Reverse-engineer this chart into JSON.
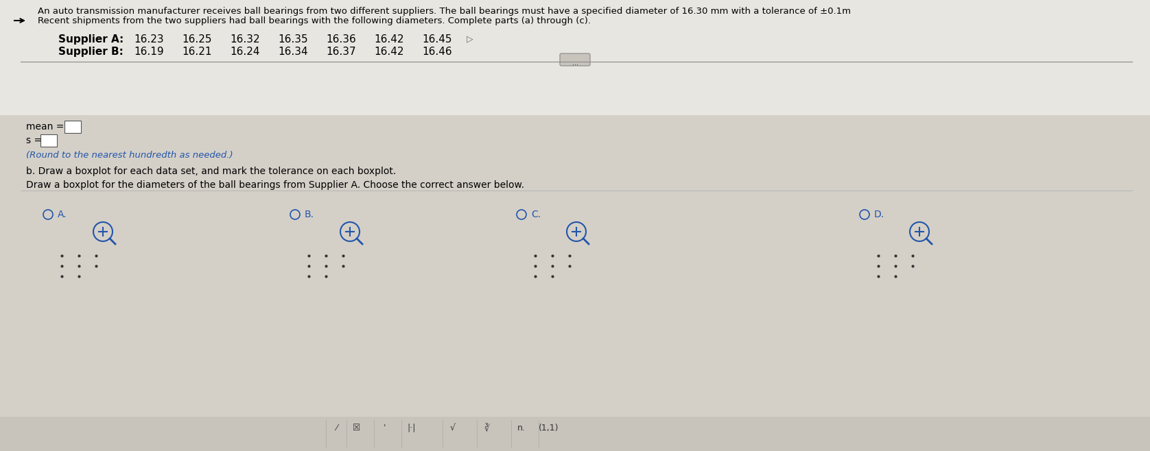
{
  "title_line1": "An auto transmission manufacturer receives ball bearings from two different suppliers. The ball bearings must have a specified diameter of 16.30 mm with a tolerance of ±0.1",
  "title_line2": "Recent shipments from the two suppliers had ball bearings with the following diameters. Complete parts (a) through (c).",
  "supplier_a_label": "Supplier A:",
  "supplier_b_label": "Supplier B:",
  "supplier_a_values": [
    16.23,
    16.25,
    16.32,
    16.35,
    16.36,
    16.42,
    16.45
  ],
  "supplier_b_values": [
    16.19,
    16.21,
    16.24,
    16.34,
    16.37,
    16.42,
    16.46
  ],
  "mean_label": "mean =",
  "s_label": "s =",
  "round_note": "(Round to the nearest hundredth as needed.)",
  "part_b": "b. Draw a boxplot for each data set, and mark the tolerance on each boxplot.",
  "part_b2": "Draw a boxplot for the diameters of the ball bearings from Supplier A. Choose the correct answer below.",
  "options": [
    "A.",
    "B.",
    "C.",
    "D."
  ],
  "bg_color": "#d4d0c8",
  "text_color": "#000000",
  "blue_color": "#2255aa",
  "box_color": "#ffffff",
  "separator_color": "#888888",
  "option_dot_color": "#2255aa"
}
